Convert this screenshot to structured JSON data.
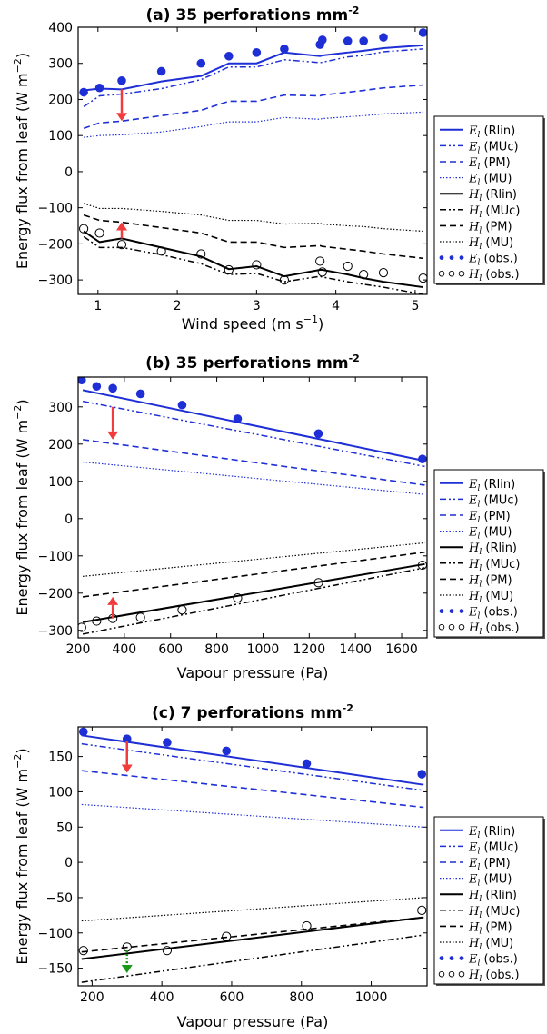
{
  "chart_data": [
    {
      "type": "line",
      "title": "(a) 35 perforations mm",
      "title_sup": "-2",
      "xlabel": "Wind speed (m s",
      "xlabel_sup": "−1",
      "xlabel_end": ")",
      "ylabel": "Energy flux from leaf (W m",
      "ylabel_sup": "−2",
      "ylabel_end": ")",
      "xlim": [
        0.75,
        5.15
      ],
      "ylim": [
        -340,
        400
      ],
      "xticks": [
        1,
        2,
        3,
        4,
        5
      ],
      "yticks": [
        -300,
        -200,
        -100,
        0,
        100,
        200,
        300,
        400
      ],
      "x": [
        0.82,
        1.02,
        1.3,
        1.8,
        2.3,
        2.65,
        3.0,
        3.35,
        3.8,
        3.83,
        4.15,
        4.35,
        4.6,
        5.1
      ],
      "series": [
        {
          "name": "E_l (Rlin)",
          "values": [
            225,
            230,
            228,
            250,
            265,
            300,
            300,
            330,
            320,
            322,
            330,
            335,
            342,
            350
          ]
        },
        {
          "name": "E_l (MUc)",
          "values": [
            180,
            210,
            215,
            230,
            255,
            290,
            290,
            310,
            302,
            303,
            318,
            322,
            332,
            340
          ]
        },
        {
          "name": "E_l (PM)",
          "values": [
            120,
            135,
            140,
            155,
            170,
            195,
            195,
            212,
            210,
            212,
            220,
            225,
            232,
            240
          ]
        },
        {
          "name": "E_l (MU)",
          "values": [
            95,
            100,
            102,
            110,
            125,
            138,
            138,
            150,
            145,
            147,
            152,
            155,
            160,
            165
          ]
        },
        {
          "name": "H_l (Rlin)",
          "values": [
            -165,
            -195,
            -185,
            -210,
            -235,
            -270,
            -262,
            -290,
            -272,
            -272,
            -285,
            -295,
            -305,
            -320
          ]
        },
        {
          "name": "H_l (MUc)",
          "values": [
            -180,
            -210,
            -210,
            -230,
            -255,
            -285,
            -282,
            -305,
            -290,
            -292,
            -305,
            -312,
            -320,
            -340
          ]
        },
        {
          "name": "H_l (PM)",
          "values": [
            -120,
            -135,
            -140,
            -155,
            -170,
            -195,
            -195,
            -210,
            -205,
            -207,
            -215,
            -220,
            -228,
            -240
          ]
        },
        {
          "name": "H_l (MU)",
          "values": [
            -88,
            -102,
            -102,
            -110,
            -120,
            -135,
            -135,
            -145,
            -143,
            -145,
            -150,
            -152,
            -158,
            -165
          ]
        }
      ],
      "obs_E": {
        "name": "E_l (obs.)",
        "x": [
          0.82,
          1.02,
          1.3,
          1.8,
          2.3,
          2.65,
          3.0,
          3.35,
          3.8,
          3.83,
          4.15,
          4.35,
          4.6,
          5.1
        ],
        "y": [
          220,
          232,
          252,
          278,
          300,
          320,
          330,
          340,
          352,
          365,
          362,
          362,
          372,
          385
        ]
      },
      "obs_H": {
        "name": "H_l (obs.)",
        "x": [
          0.82,
          1.02,
          1.3,
          1.8,
          2.3,
          2.65,
          3.0,
          3.35,
          3.8,
          3.83,
          4.15,
          4.35,
          4.6,
          5.1
        ],
        "y": [
          -158,
          -170,
          -202,
          -220,
          -228,
          -272,
          -258,
          -300,
          -248,
          -278,
          -262,
          -285,
          -280,
          -295
        ]
      },
      "arrows": [
        {
          "x": 1.3,
          "y_from": 228,
          "y_to": 140,
          "color": "#f03c3c",
          "style": "solid"
        },
        {
          "x": 1.3,
          "y_from": -185,
          "y_to": -140,
          "color": "#f03c3c",
          "style": "solid"
        }
      ]
    },
    {
      "type": "line",
      "title": "(b) 35 perforations mm",
      "title_sup": "-2",
      "xlabel": "Vapour pressure (Pa)",
      "ylabel": "Energy flux from leaf (W m",
      "ylabel_sup": "−2",
      "ylabel_end": ")",
      "xlim": [
        200,
        1710
      ],
      "ylim": [
        -320,
        380
      ],
      "xticks": [
        200,
        400,
        600,
        800,
        1000,
        1200,
        1400,
        1600
      ],
      "yticks": [
        -300,
        -200,
        -100,
        0,
        100,
        200,
        300
      ],
      "x": [
        220,
        1700
      ],
      "series": [
        {
          "name": "E_l (Rlin)",
          "values": [
            345,
            155
          ]
        },
        {
          "name": "E_l (MUc)",
          "values": [
            315,
            140
          ]
        },
        {
          "name": "E_l (PM)",
          "values": [
            212,
            90
          ]
        },
        {
          "name": "E_l (MU)",
          "values": [
            152,
            65
          ]
        },
        {
          "name": "H_l (Rlin)",
          "values": [
            -278,
            -122
          ]
        },
        {
          "name": "H_l (MUc)",
          "values": [
            -310,
            -132
          ]
        },
        {
          "name": "H_l (PM)",
          "values": [
            -210,
            -90
          ]
        },
        {
          "name": "H_l (MU)",
          "values": [
            -155,
            -65
          ]
        }
      ],
      "obs_E": {
        "name": "E_l (obs.)",
        "x": [
          215,
          280,
          350,
          470,
          650,
          890,
          1240,
          1690
        ],
        "y": [
          372,
          355,
          350,
          335,
          305,
          268,
          228,
          160
        ]
      },
      "obs_H": {
        "name": "H_l (obs.)",
        "x": [
          215,
          280,
          350,
          470,
          650,
          890,
          1240,
          1690
        ],
        "y": [
          -292,
          -275,
          -268,
          -265,
          -245,
          -213,
          -172,
          -125
        ]
      },
      "arrows": [
        {
          "x": 350,
          "y_from": 300,
          "y_to": 212,
          "color": "#f03c3c",
          "style": "solid"
        },
        {
          "x": 350,
          "y_from": -268,
          "y_to": -210,
          "color": "#f03c3c",
          "style": "solid"
        }
      ]
    },
    {
      "type": "line",
      "title": "(c) 7 perforations mm",
      "title_sup": "-2",
      "xlabel": "Vapour pressure (Pa)",
      "ylabel": "Energy flux from leaf (W m",
      "ylabel_sup": "−2",
      "ylabel_end": ")",
      "xlim": [
        160,
        1160
      ],
      "ylim": [
        -175,
        192
      ],
      "xticks": [
        200,
        400,
        600,
        800,
        1000
      ],
      "yticks": [
        -150,
        -100,
        -50,
        0,
        50,
        100,
        150
      ],
      "x": [
        170,
        1150
      ],
      "series": [
        {
          "name": "E_l (Rlin)",
          "values": [
            180,
            110
          ]
        },
        {
          "name": "E_l (MUc)",
          "values": [
            168,
            102
          ]
        },
        {
          "name": "E_l (PM)",
          "values": [
            130,
            78
          ]
        },
        {
          "name": "E_l (MU)",
          "values": [
            82,
            50
          ]
        },
        {
          "name": "H_l (Rlin)",
          "values": [
            -137,
            -78
          ]
        },
        {
          "name": "H_l (MUc)",
          "values": [
            -170,
            -103
          ]
        },
        {
          "name": "H_l (PM)",
          "values": [
            -127,
            -78
          ]
        },
        {
          "name": "H_l (MU)",
          "values": [
            -83,
            -50
          ]
        }
      ],
      "obs_E": {
        "name": "E_l (obs.)",
        "x": [
          175,
          300,
          415,
          585,
          815,
          1145
        ],
        "y": [
          185,
          175,
          170,
          158,
          140,
          125
        ]
      },
      "obs_H": {
        "name": "H_l (obs.)",
        "x": [
          175,
          300,
          415,
          585,
          815,
          1145
        ],
        "y": [
          -125,
          -120,
          -125,
          -105,
          -90,
          -68
        ]
      },
      "arrows": [
        {
          "x": 300,
          "y_from": 172,
          "y_to": 127,
          "color": "#f03c3c",
          "style": "solid"
        },
        {
          "x": 300,
          "y_from": -125,
          "y_to": -157,
          "color": "#1a9a1a",
          "style": "dotted"
        }
      ]
    }
  ],
  "legend_entries": [
    {
      "sym": "E",
      "sub": "l",
      "label": "(Rlin)",
      "kind": "line",
      "dash": "",
      "color": "#1f2fd6",
      "width": 2
    },
    {
      "sym": "E",
      "sub": "l",
      "label": "(MUc)",
      "kind": "line",
      "dash": "7 3 2 3 2 3",
      "color": "#1f2fd6",
      "width": 1.5
    },
    {
      "sym": "E",
      "sub": "l",
      "label": "(PM)",
      "kind": "line",
      "dash": "7 4",
      "color": "#1f2fd6",
      "width": 1.6
    },
    {
      "sym": "E",
      "sub": "l",
      "label": "(MU)",
      "kind": "line",
      "dash": "1.5 2",
      "color": "#1f2fd6",
      "width": 1.2
    },
    {
      "sym": "H",
      "sub": "l",
      "label": "(Rlin)",
      "kind": "line",
      "dash": "",
      "color": "#000000",
      "width": 2
    },
    {
      "sym": "H",
      "sub": "l",
      "label": "(MUc)",
      "kind": "line",
      "dash": "7 3 2 3 2 3",
      "color": "#000000",
      "width": 1.5
    },
    {
      "sym": "H",
      "sub": "l",
      "label": "(PM)",
      "kind": "line",
      "dash": "7 4",
      "color": "#000000",
      "width": 1.6
    },
    {
      "sym": "H",
      "sub": "l",
      "label": "(MU)",
      "kind": "line",
      "dash": "1.5 2",
      "color": "#000000",
      "width": 1.2
    },
    {
      "sym": "E",
      "sub": "l",
      "label": "(obs.)",
      "kind": "filled",
      "color": "#1f2fd6"
    },
    {
      "sym": "H",
      "sub": "l",
      "label": "(obs.)",
      "kind": "open",
      "color": "#000000"
    }
  ],
  "colors": {
    "blue": "#1f2fd6",
    "black": "#000000",
    "red": "#f03c3c",
    "green": "#1a9a1a"
  }
}
